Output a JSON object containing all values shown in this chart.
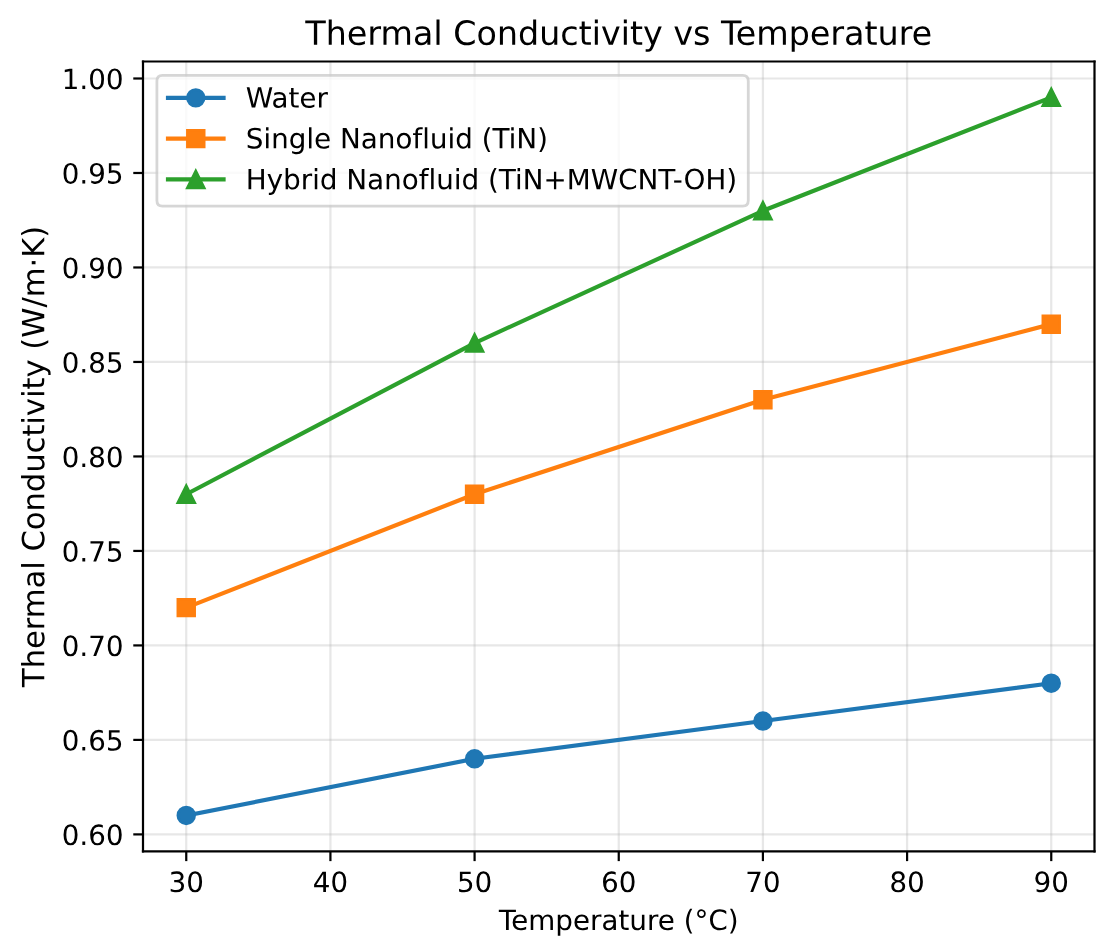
{
  "chart_data": {
    "type": "line",
    "title": "Thermal Conductivity vs Temperature",
    "xlabel": "Temperature (°C)",
    "ylabel": "Thermal Conductivity (W/m·K)",
    "x": [
      30,
      50,
      70,
      90
    ],
    "series": [
      {
        "name": "Water",
        "color": "#1f77b4",
        "marker": "circle",
        "values": [
          0.61,
          0.64,
          0.66,
          0.68
        ]
      },
      {
        "name": "Single Nanofluid (TiN)",
        "color": "#ff7f0e",
        "marker": "square",
        "values": [
          0.72,
          0.78,
          0.83,
          0.87
        ]
      },
      {
        "name": "Hybrid Nanofluid (TiN+MWCNT-OH)",
        "color": "#2ca02c",
        "marker": "triangle",
        "values": [
          0.78,
          0.86,
          0.93,
          0.99
        ]
      }
    ],
    "xlim": [
      27,
      93
    ],
    "xticks": [
      30,
      40,
      50,
      60,
      70,
      80,
      90
    ],
    "ylim": [
      0.591,
      1.009
    ],
    "yticks": [
      {
        "value": 0.6,
        "label": "0.60"
      },
      {
        "value": 0.65,
        "label": "0.65"
      },
      {
        "value": 0.7,
        "label": "0.70"
      },
      {
        "value": 0.75,
        "label": "0.75"
      },
      {
        "value": 0.8,
        "label": "0.80"
      },
      {
        "value": 0.85,
        "label": "0.85"
      },
      {
        "value": 0.9,
        "label": "0.90"
      },
      {
        "value": 0.95,
        "label": "0.95"
      },
      {
        "value": 1.0,
        "label": "1.00"
      }
    ],
    "grid": true,
    "legend": "top left",
    "line_style": "solid"
  }
}
